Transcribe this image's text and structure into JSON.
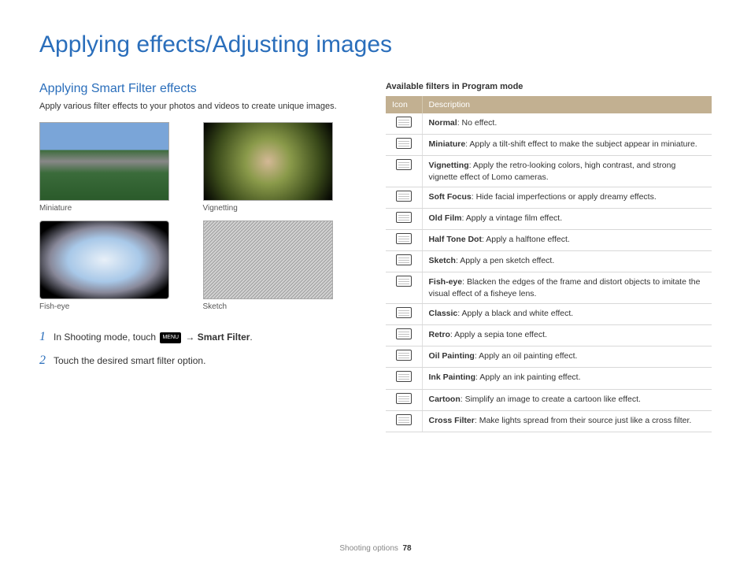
{
  "page": {
    "title": "Applying effects/Adjusting images",
    "footer_section": "Shooting options",
    "footer_page": "78"
  },
  "left": {
    "section_title": "Applying Smart Filter effects",
    "section_desc": "Apply various filter effects to your photos and videos to create unique images.",
    "examples": [
      {
        "caption": "Miniature"
      },
      {
        "caption": "Vignetting"
      },
      {
        "caption": "Fish-eye"
      },
      {
        "caption": "Sketch"
      }
    ],
    "steps": [
      {
        "num": "1",
        "prefix": "In Shooting mode, touch ",
        "menu": "MENU",
        "arrow": " → ",
        "bold": "Smart Filter",
        "suffix": "."
      },
      {
        "num": "2",
        "text": "Touch the desired smart filter option."
      }
    ]
  },
  "right": {
    "table_title": "Available filters in Program mode",
    "header_icon": "Icon",
    "header_desc": "Description",
    "rows": [
      {
        "name": "Normal",
        "desc": ": No effect."
      },
      {
        "name": "Miniature",
        "desc": ": Apply a tilt-shift effect to make the subject appear in miniature."
      },
      {
        "name": "Vignetting",
        "desc": ": Apply the retro-looking colors, high contrast, and strong vignette effect of Lomo cameras."
      },
      {
        "name": "Soft Focus",
        "desc": ": Hide facial imperfections or apply dreamy effects."
      },
      {
        "name": "Old Film",
        "desc": ": Apply a vintage film effect."
      },
      {
        "name": "Half Tone Dot",
        "desc": ": Apply a halftone effect."
      },
      {
        "name": "Sketch",
        "desc": ": Apply a pen sketch effect."
      },
      {
        "name": "Fish-eye",
        "desc": ": Blacken the edges of the frame and distort objects to imitate the visual effect of a fisheye lens."
      },
      {
        "name": "Classic",
        "desc": ": Apply a black and white effect."
      },
      {
        "name": "Retro",
        "desc": ": Apply a sepia tone effect."
      },
      {
        "name": "Oil Painting",
        "desc": ": Apply an oil painting effect."
      },
      {
        "name": "Ink Painting",
        "desc": ": Apply an ink painting effect."
      },
      {
        "name": "Cartoon",
        "desc": ": Simplify an image to create a cartoon like effect."
      },
      {
        "name": "Cross Filter",
        "desc": ": Make lights spread from their source just like a cross filter."
      }
    ]
  }
}
